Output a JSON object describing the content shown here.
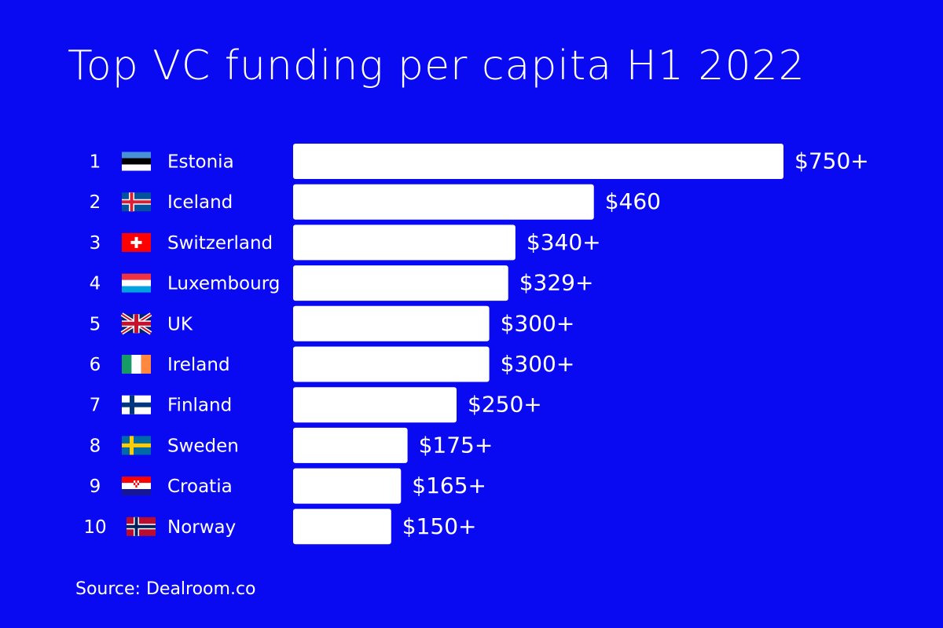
{
  "title": "Top VC funding per capita H1 2022",
  "source": "Source: Dealroom.co",
  "colors": {
    "background": "#0a0af2",
    "bar": "#ffffff",
    "text": "#ffffff"
  },
  "chart_data": {
    "type": "bar",
    "orientation": "horizontal",
    "title": "Top VC funding per capita H1 2022",
    "xlabel": "",
    "ylabel": "",
    "xlim": [
      0,
      750
    ],
    "grid": false,
    "legend": "none",
    "rows": [
      {
        "rank": "1",
        "country": "Estonia",
        "flag": "estonia-flag-icon",
        "value": 750,
        "label": "$750+"
      },
      {
        "rank": "2",
        "country": "Iceland",
        "flag": "iceland-flag-icon",
        "value": 460,
        "label": "$460"
      },
      {
        "rank": "3",
        "country": "Switzerland",
        "flag": "switzerland-flag-icon",
        "value": 340,
        "label": "$340+"
      },
      {
        "rank": "4",
        "country": "Luxembourg",
        "flag": "luxembourg-flag-icon",
        "value": 329,
        "label": "$329+"
      },
      {
        "rank": "5",
        "country": "UK",
        "flag": "uk-flag-icon",
        "value": 300,
        "label": "$300+"
      },
      {
        "rank": "6",
        "country": "Ireland",
        "flag": "ireland-flag-icon",
        "value": 300,
        "label": "$300+"
      },
      {
        "rank": "7",
        "country": "Finland",
        "flag": "finland-flag-icon",
        "value": 250,
        "label": "$250+"
      },
      {
        "rank": "8",
        "country": "Sweden",
        "flag": "sweden-flag-icon",
        "value": 175,
        "label": "$175+"
      },
      {
        "rank": "9",
        "country": "Croatia",
        "flag": "croatia-flag-icon",
        "value": 165,
        "label": "$165+"
      },
      {
        "rank": "10",
        "country": "Norway",
        "flag": "norway-flag-icon",
        "value": 150,
        "label": "$150+"
      }
    ]
  }
}
